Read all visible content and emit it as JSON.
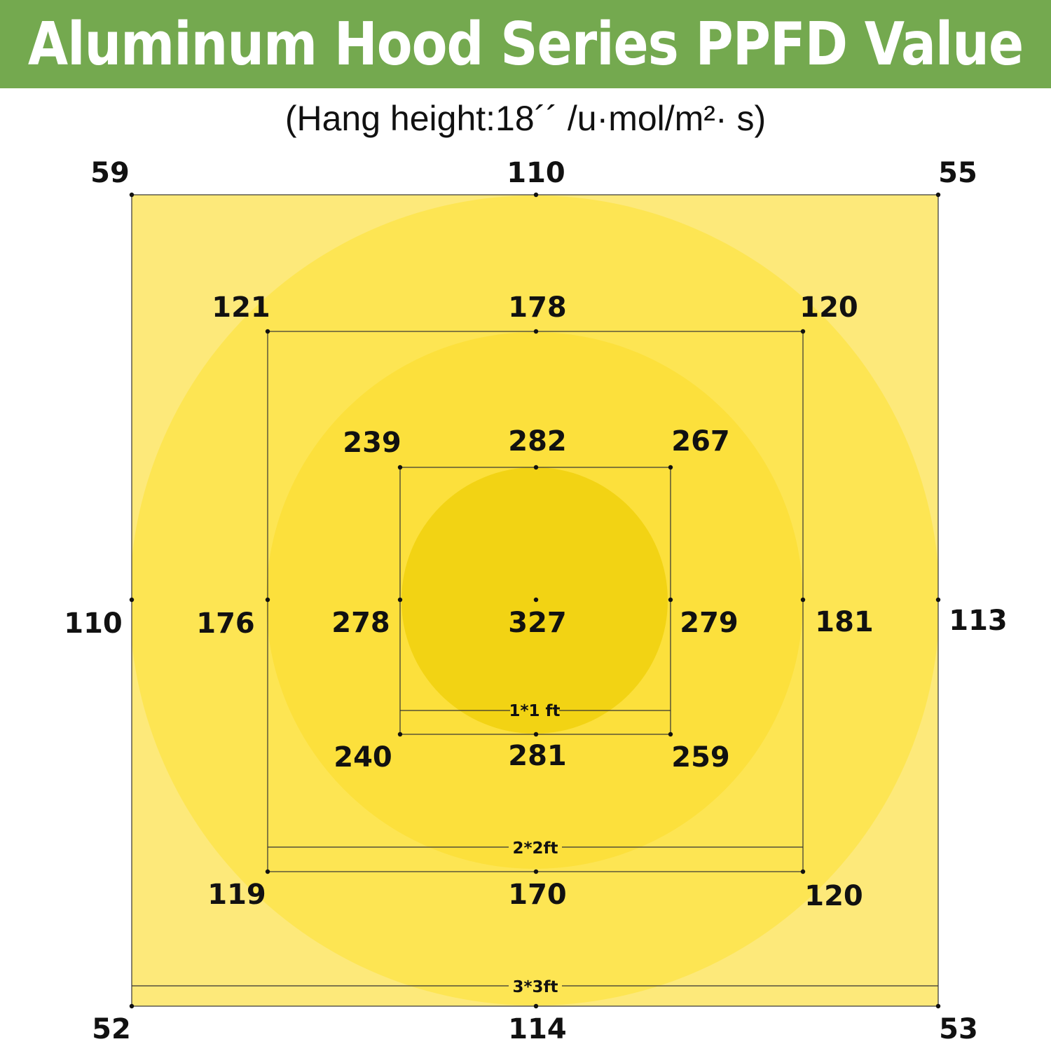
{
  "title": "Aluminum Hood Series PPFD Value",
  "subtitle": "(Hang height:18´´ /u·mol/m²· s)",
  "colors": {
    "banner": "#74a94f",
    "zone_outer": "#fde97a",
    "zone_ring1": "#fde553",
    "zone_ring2": "#fce03c",
    "zone_core": "#f2d314"
  },
  "areas": {
    "1x1": {
      "label": "1*1 ft",
      "values": {
        "top_left": "239",
        "top_center": "282",
        "top_right": "267",
        "middle_left": "278",
        "center": "327",
        "middle_right": "279",
        "bottom_left": "240",
        "bottom_center": "281",
        "bottom_right": "259"
      }
    },
    "2x2": {
      "label": "2*2ft",
      "values": {
        "top_left": "121",
        "top_center": "178",
        "top_right": "120",
        "middle_left": "176",
        "middle_right": "181",
        "bottom_left": "119",
        "bottom_center": "170",
        "bottom_right": "120"
      }
    },
    "3x3": {
      "label": "3*3ft",
      "values": {
        "top_left": "59",
        "top_center": "110",
        "top_right": "55",
        "middle_left": "110",
        "middle_right": "113",
        "bottom_left": "52",
        "bottom_center": "114",
        "bottom_right": "53"
      }
    }
  }
}
